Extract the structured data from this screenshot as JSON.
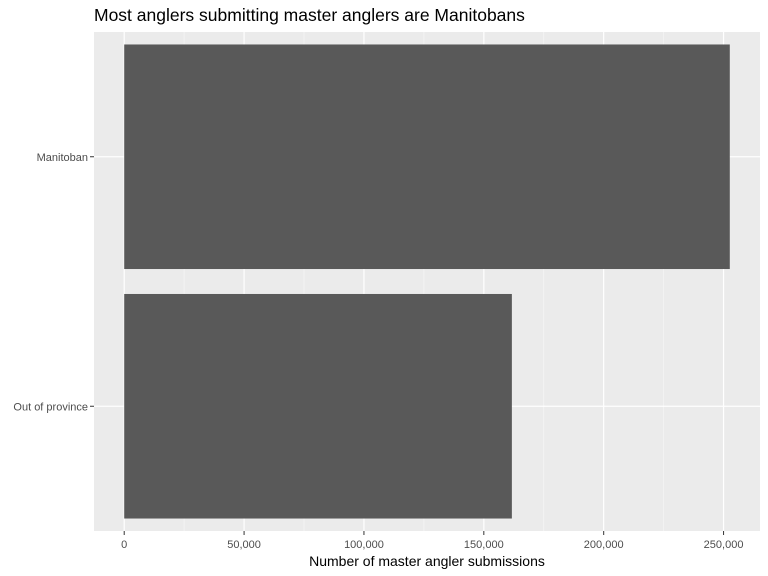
{
  "chart_data": {
    "type": "bar",
    "orientation": "horizontal",
    "title": "Most anglers submitting master anglers are Manitobans",
    "xlabel": "Number of master angler submissions",
    "ylabel": "",
    "categories": [
      "Manitoban",
      "Out of province"
    ],
    "values": [
      252600,
      161700
    ],
    "xlim": [
      -12600,
      265200
    ],
    "xticks": [
      0,
      50000,
      100000,
      150000,
      200000,
      250000
    ],
    "xtick_labels": [
      "0",
      "50,000",
      "100,000",
      "150,000",
      "200,000",
      "250,000"
    ],
    "grid": true,
    "legend": "none",
    "colors": {
      "bar": "#595959",
      "panel": "#ebebeb",
      "grid_major": "#ffffff",
      "grid_minor": "#f5f5f5"
    }
  }
}
